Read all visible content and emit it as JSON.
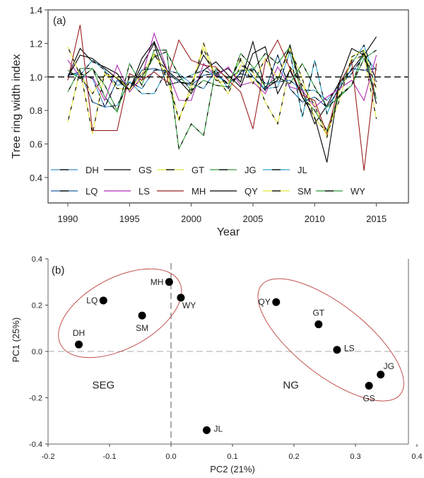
{
  "chart_data": [
    {
      "type": "line",
      "panel_label": "(a)",
      "title": "",
      "xlabel": "Year",
      "ylabel": "Tree ring width index",
      "xlim": [
        1988.4,
        2017.6
      ],
      "ylim": [
        0.3,
        1.4
      ],
      "xticks": [
        1990,
        1995,
        2000,
        2005,
        2010,
        2015
      ],
      "xtick_labels": [
        "1990",
        "1995",
        "2000",
        "2005",
        "2010",
        "2015"
      ],
      "yticks": [
        0.4,
        0.6,
        0.8,
        1.0,
        1.2,
        1.4
      ],
      "ytick_labels": [
        "0.4",
        "0.6",
        "0.8",
        "1.0",
        "1.2",
        "1.4"
      ],
      "reference_line": {
        "y": 1.0,
        "style": "dashed",
        "color": "#000000"
      },
      "grid": false,
      "legend_position": "bottom",
      "x": [
        1990,
        1991,
        1992,
        1993,
        1994,
        1995,
        1996,
        1997,
        1998,
        1999,
        2000,
        2001,
        2002,
        2003,
        2004,
        2005,
        2006,
        2007,
        2008,
        2009,
        2010,
        2011,
        2012,
        2013,
        2014,
        2015
      ],
      "series": [
        {
          "name": "DH",
          "color": "#3a8fd0",
          "dash": "long-black",
          "values": [
            1.01,
            1.02,
            0.99,
            0.82,
            0.83,
            0.97,
            0.93,
            1.04,
            1.04,
            1.02,
            0.96,
            0.93,
            1.04,
            0.93,
            1.03,
            1.05,
            0.96,
            0.97,
            0.98,
            0.92,
            0.92,
            0.86,
            0.95,
            1.02,
            1.13,
            1.04
          ]
        },
        {
          "name": "GS",
          "color": "#000000",
          "dash": "solid",
          "values": [
            1.0,
            1.17,
            1.09,
            1.06,
            1.02,
            0.92,
            1.07,
            1.2,
            0.95,
            0.97,
            0.96,
            1.13,
            1.02,
            1.05,
            0.97,
            1.21,
            0.93,
            0.98,
            1.19,
            0.92,
            0.72,
            0.83,
            0.97,
            1.04,
            1.14,
            0.84
          ]
        },
        {
          "name": "GT",
          "color": "#e3e33a",
          "dash": "yellow-black",
          "values": [
            0.73,
            1.04,
            0.66,
            1.03,
            0.93,
            0.93,
            0.98,
            1.14,
            1.0,
            0.75,
            0.92,
            1.2,
            1.0,
            0.9,
            1.07,
            1.03,
            0.85,
            0.72,
            1.06,
            0.95,
            0.83,
            0.64,
            0.92,
            1.1,
            1.13,
            0.75
          ]
        },
        {
          "name": "JG",
          "color": "#2e9a3a",
          "dash": "green-black",
          "values": [
            0.91,
            1.05,
            1.05,
            0.88,
            0.79,
            1.08,
            0.95,
            1.16,
            1.16,
            0.57,
            0.72,
            0.65,
            1.05,
            0.99,
            1.04,
            1.04,
            1.14,
            1.08,
            1.18,
            0.88,
            0.8,
            0.68,
            0.89,
            0.95,
            1.16,
            0.87
          ]
        },
        {
          "name": "JL",
          "color": "#2ba3c3",
          "dash": "long-black",
          "values": [
            1.02,
            1.01,
            1.1,
            1.04,
            0.95,
            0.97,
            0.9,
            0.9,
            1.04,
            0.98,
            1.01,
            1.04,
            1.01,
            0.96,
            1.1,
            1.0,
            0.93,
            0.94,
            1.15,
            0.76,
            1.1,
            0.78,
            0.95,
            1.08,
            1.19,
            0.97
          ]
        },
        {
          "name": "LQ",
          "color": "#1f5fa0",
          "dash": "long-black",
          "values": [
            1.01,
            1.03,
            0.85,
            0.82,
            0.98,
            0.92,
            1.04,
            1.05,
            1.03,
            0.97,
            0.95,
            1.01,
            1.02,
            0.96,
            1.02,
            1.0,
            0.92,
            1.13,
            0.93,
            0.85,
            0.88,
            0.82,
            0.93,
            1.05,
            1.04,
            1.05
          ]
        },
        {
          "name": "LS",
          "color": "#b02cb0",
          "dash": "solid",
          "values": [
            1.1,
            1.0,
            1.0,
            0.86,
            1.07,
            0.91,
            1.0,
            1.26,
            1.05,
            0.86,
            0.86,
            1.08,
            1.0,
            1.06,
            0.95,
            0.97,
            0.9,
            1.06,
            0.94,
            0.92,
            0.82,
            0.88,
            0.93,
            0.98,
            0.86,
            1.13
          ]
        },
        {
          "name": "MH",
          "color": "#9a1f1f",
          "dash": "solid",
          "values": [
            0.98,
            1.31,
            0.68,
            0.68,
            0.68,
            1.02,
            0.98,
            1.03,
            0.97,
            1.22,
            1.1,
            1.07,
            1.06,
            0.98,
            0.91,
            0.69,
            1.09,
            1.22,
            1.05,
            0.89,
            0.86,
            0.66,
            0.96,
            1.09,
            0.44,
            1.08
          ]
        },
        {
          "name": "QY",
          "color": "#000000",
          "dash": "solid",
          "values": [
            1.0,
            1.13,
            1.11,
            1.05,
            0.99,
            0.92,
            1.11,
            1.21,
            1.04,
            0.98,
            0.9,
            1.04,
            1.09,
            1.01,
            0.94,
            1.14,
            1.18,
            0.9,
            1.04,
            0.88,
            0.76,
            0.49,
            0.97,
            1.17,
            1.13,
            1.24
          ]
        },
        {
          "name": "SM",
          "color": "#e3e33a",
          "dash": "yellow-black",
          "values": [
            1.18,
            1.01,
            0.9,
            1.01,
            1.0,
            0.92,
            1.02,
            1.13,
            1.04,
            0.74,
            0.95,
            1.17,
            0.98,
            0.96,
            1.11,
            0.96,
            1.11,
            0.99,
            1.17,
            0.99,
            0.75,
            0.67,
            0.86,
            1.12,
            1.16,
            0.93
          ]
        },
        {
          "name": "WY",
          "color": "#2e9a3a",
          "dash": "green-black",
          "values": [
            1.04,
            0.99,
            1.05,
            0.95,
            0.8,
            1.0,
            1.0,
            1.12,
            1.15,
            1.01,
            0.92,
            0.98,
            0.95,
            0.94,
            1.14,
            1.06,
            0.94,
            1.0,
            0.96,
            1.08,
            0.94,
            0.82,
            0.88,
            0.95,
            1.11,
            1.16
          ]
        }
      ]
    },
    {
      "type": "scatter",
      "panel_label": "(b)",
      "title": "",
      "xlabel": "PC2 (21%)",
      "ylabel": "PC1 (25%)",
      "xlim": [
        -0.2,
        0.4
      ],
      "ylim": [
        -0.4,
        0.4
      ],
      "xticks": [
        -0.2,
        -0.1,
        0.0,
        0.1,
        0.2,
        0.3,
        0.4
      ],
      "xtick_labels": [
        "-0.2",
        "-0.1",
        "0.0",
        "0.1",
        "0.2",
        "0.3",
        "0.4"
      ],
      "yticks": [
        -0.4,
        -0.2,
        0.0,
        0.2,
        0.4
      ],
      "ytick_labels": [
        "-0.4",
        "-0.2",
        "0.0",
        "0.2",
        "0.4"
      ],
      "reference_lines": [
        {
          "axis": "x",
          "value": 0.0,
          "style": "dashed"
        },
        {
          "axis": "y",
          "value": 0.0,
          "style": "dashed"
        }
      ],
      "grid": false,
      "points": [
        {
          "label": "DH",
          "x": -0.15,
          "y": 0.03,
          "label_pos": "above"
        },
        {
          "label": "LQ",
          "x": -0.11,
          "y": 0.22,
          "label_pos": "left"
        },
        {
          "label": "SM",
          "x": -0.047,
          "y": 0.155,
          "label_pos": "below"
        },
        {
          "label": "MH",
          "x": -0.003,
          "y": 0.3,
          "label_pos": "left"
        },
        {
          "label": "WY",
          "x": 0.016,
          "y": 0.232,
          "label_pos": "below-right"
        },
        {
          "label": "QY",
          "x": 0.171,
          "y": 0.213,
          "label_pos": "left"
        },
        {
          "label": "GT",
          "x": 0.24,
          "y": 0.117,
          "label_pos": "above"
        },
        {
          "label": "LS",
          "x": 0.27,
          "y": 0.007,
          "label_pos": "right"
        },
        {
          "label": "JG",
          "x": 0.341,
          "y": -0.1,
          "label_pos": "above-right"
        },
        {
          "label": "GS",
          "x": 0.322,
          "y": -0.148,
          "label_pos": "below"
        },
        {
          "label": "JL",
          "x": 0.058,
          "y": -0.34,
          "label_pos": "right"
        }
      ],
      "groups": [
        {
          "name": "SEG",
          "members": [
            "DH",
            "LQ",
            "SM",
            "MH"
          ],
          "label_at": {
            "x": -0.11,
            "y": -0.16
          },
          "ellipse_color": "#c0504d"
        },
        {
          "name": "NG",
          "members": [
            "QY",
            "GT",
            "LS",
            "JG",
            "GS"
          ],
          "label_at": {
            "x": 0.195,
            "y": -0.16
          },
          "ellipse_color": "#c0504d"
        }
      ]
    }
  ]
}
